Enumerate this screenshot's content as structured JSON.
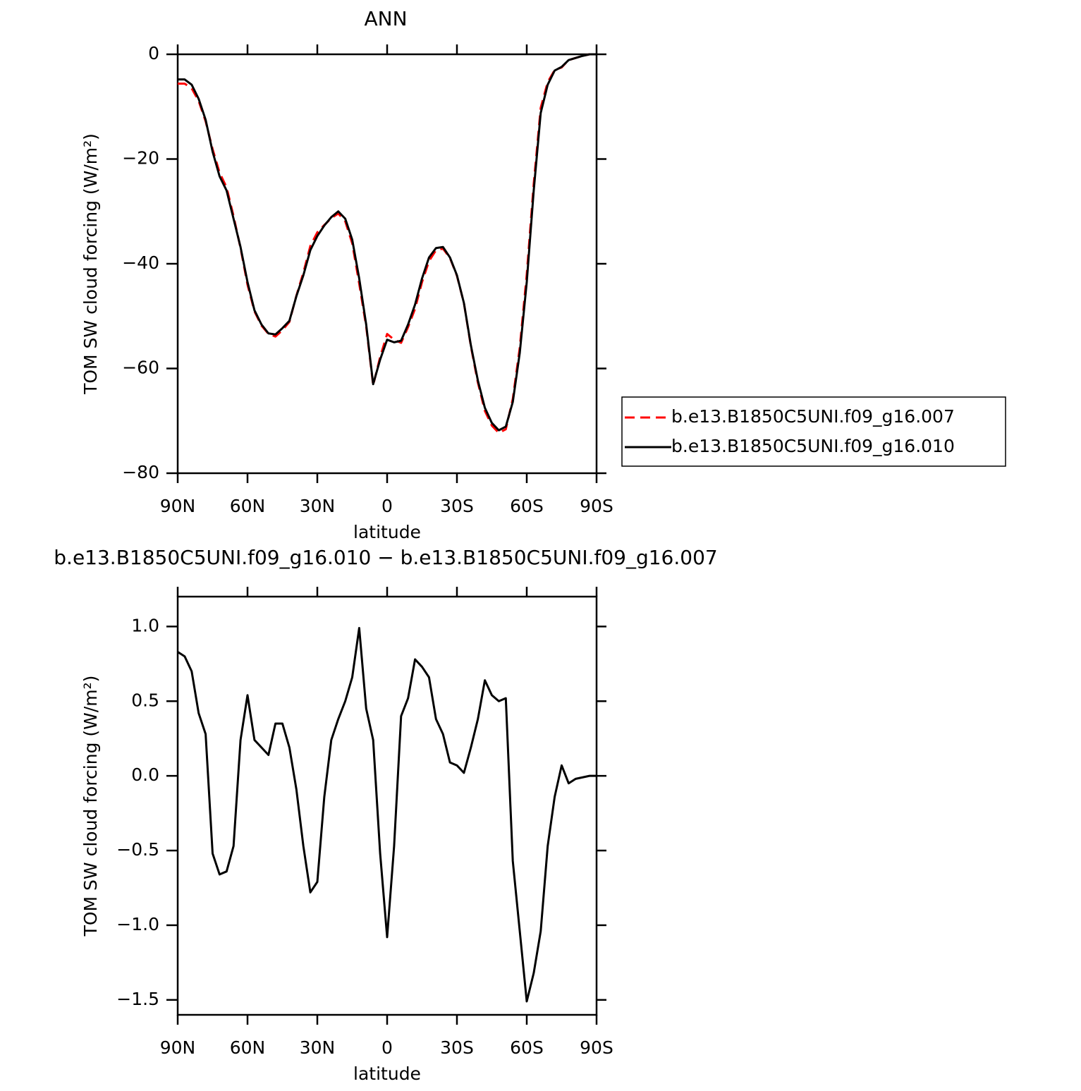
{
  "chart_data": [
    {
      "type": "line",
      "title": "ANN",
      "xlabel": "latitude",
      "ylabel": "TOM SW cloud forcing (W/m²)",
      "x": [
        90,
        87,
        84,
        81,
        78,
        75,
        72,
        69,
        66,
        63,
        60,
        57,
        54,
        51,
        48,
        45,
        42,
        39,
        36,
        33,
        30,
        27,
        24,
        21,
        18,
        15,
        12,
        9,
        6,
        3,
        0,
        -3,
        -6,
        -9,
        -12,
        -15,
        -18,
        -21,
        -24,
        -27,
        -30,
        -33,
        -36,
        -39,
        -42,
        -45,
        -48,
        -51,
        -54,
        -57,
        -60,
        -63,
        -66,
        -69,
        -72,
        -75,
        -78,
        -81,
        -84,
        -87,
        -90
      ],
      "series": [
        {
          "name": "b.e13.B1850C5UNI.f09_g16.007",
          "color": "#ff0000",
          "dash": true,
          "values": [
            -5.6,
            -5.6,
            -6.5,
            -8.9,
            -12.8,
            -18.1,
            -22.6,
            -25.4,
            -30.9,
            -37.0,
            -44.0,
            -49.1,
            -51.8,
            -53.4,
            -53.9,
            -52.7,
            -51.1,
            -46.1,
            -41.7,
            -36.6,
            -34.0,
            -32.6,
            -31.3,
            -30.4,
            -31.9,
            -36.1,
            -43.8,
            -52.0,
            -63.2,
            -57.8,
            -53.4,
            -54.5,
            -55.1,
            -52.1,
            -48.6,
            -43.5,
            -39.5,
            -37.4,
            -37.1,
            -38.9,
            -42.3,
            -47.5,
            -55.8,
            -62.7,
            -68.1,
            -70.9,
            -72.3,
            -71.6,
            -65.8,
            -56.0,
            -42.0,
            -24.7,
            -10.2,
            -5.3,
            -3.0,
            -2.5,
            -1.1,
            -0.7,
            -0.3,
            0,
            0
          ]
        },
        {
          "name": "b.e13.B1850C5UNI.f09_g16.010",
          "color": "#000000",
          "dash": false,
          "values": [
            -4.8,
            -4.8,
            -5.8,
            -8.5,
            -12.5,
            -18.6,
            -23.3,
            -26.0,
            -31.4,
            -36.8,
            -43.5,
            -48.9,
            -51.6,
            -53.3,
            -53.5,
            -52.3,
            -50.9,
            -46.2,
            -42.2,
            -37.4,
            -34.7,
            -32.7,
            -31.1,
            -30.0,
            -31.4,
            -35.4,
            -42.8,
            -51.6,
            -63.0,
            -58.3,
            -54.5,
            -55.0,
            -54.7,
            -51.6,
            -47.8,
            -42.8,
            -38.8,
            -37.0,
            -36.8,
            -38.8,
            -42.2,
            -47.5,
            -55.6,
            -62.3,
            -67.5,
            -70.4,
            -71.8,
            -71.1,
            -66.4,
            -57.0,
            -43.5,
            -26.0,
            -11.2,
            -5.8,
            -3.1,
            -2.4,
            -1.1,
            -0.7,
            -0.3,
            0,
            0
          ]
        }
      ],
      "xlim": [
        90,
        -90
      ],
      "xticks": [
        {
          "value": 90,
          "label": "90N"
        },
        {
          "value": 60,
          "label": "60N"
        },
        {
          "value": 30,
          "label": "30N"
        },
        0,
        {
          "value": -30,
          "label": "30S"
        },
        {
          "value": -60,
          "label": "60S"
        },
        {
          "value": -90,
          "label": "90S"
        }
      ],
      "ylim": [
        -80,
        0
      ],
      "yticks": [
        0,
        -20,
        -40,
        -60,
        -80
      ],
      "legend": "right"
    },
    {
      "type": "line",
      "title": "b.e13.B1850C5UNI.f09_g16.010 − b.e13.B1850C5UNI.f09_g16.007",
      "xlabel": "latitude",
      "ylabel": "TOM SW cloud forcing (W/m²)",
      "x": [
        90,
        87,
        84,
        81,
        78,
        75,
        72,
        69,
        66,
        63,
        60,
        57,
        54,
        51,
        48,
        45,
        42,
        39,
        36,
        33,
        30,
        27,
        24,
        21,
        18,
        15,
        12,
        9,
        6,
        3,
        0,
        -3,
        -6,
        -9,
        -12,
        -15,
        -18,
        -21,
        -24,
        -27,
        -30,
        -33,
        -36,
        -39,
        -42,
        -45,
        -48,
        -51,
        -54,
        -57,
        -60,
        -63,
        -66,
        -69,
        -72,
        -75,
        -78,
        -81,
        -84,
        -87,
        -90
      ],
      "series": [
        {
          "color": "#000000",
          "dash": false,
          "values": [
            0.83,
            0.8,
            0.7,
            0.42,
            0.28,
            -0.52,
            -0.66,
            -0.64,
            -0.47,
            0.24,
            0.54,
            0.24,
            0.19,
            0.14,
            0.35,
            0.35,
            0.19,
            -0.09,
            -0.47,
            -0.78,
            -0.71,
            -0.14,
            0.24,
            0.38,
            0.5,
            0.66,
            0.99,
            0.45,
            0.24,
            -0.52,
            -1.08,
            -0.47,
            0.4,
            0.52,
            0.78,
            0.73,
            0.66,
            0.38,
            0.28,
            0.09,
            0.07,
            0.02,
            0.19,
            0.38,
            0.64,
            0.54,
            0.5,
            0.52,
            -0.57,
            -1.04,
            -1.51,
            -1.32,
            -1.04,
            -0.47,
            -0.14,
            0.07,
            -0.05,
            -0.02,
            -0.01,
            0,
            0
          ]
        }
      ],
      "xlim": [
        90,
        -90
      ],
      "xticks": [
        {
          "value": 90,
          "label": "90N"
        },
        {
          "value": 60,
          "label": "60N"
        },
        {
          "value": 30,
          "label": "30N"
        },
        0,
        {
          "value": -30,
          "label": "30S"
        },
        {
          "value": -60,
          "label": "60S"
        },
        {
          "value": -90,
          "label": "90S"
        }
      ],
      "ylim": [
        -1.6,
        1.2
      ],
      "yticks": [
        {
          "value": 1,
          "label": "1.0"
        },
        0.5,
        {
          "value": 0,
          "label": "0.0"
        },
        -0.5,
        {
          "value": -1,
          "label": "-1.0"
        },
        -1.5
      ]
    }
  ]
}
